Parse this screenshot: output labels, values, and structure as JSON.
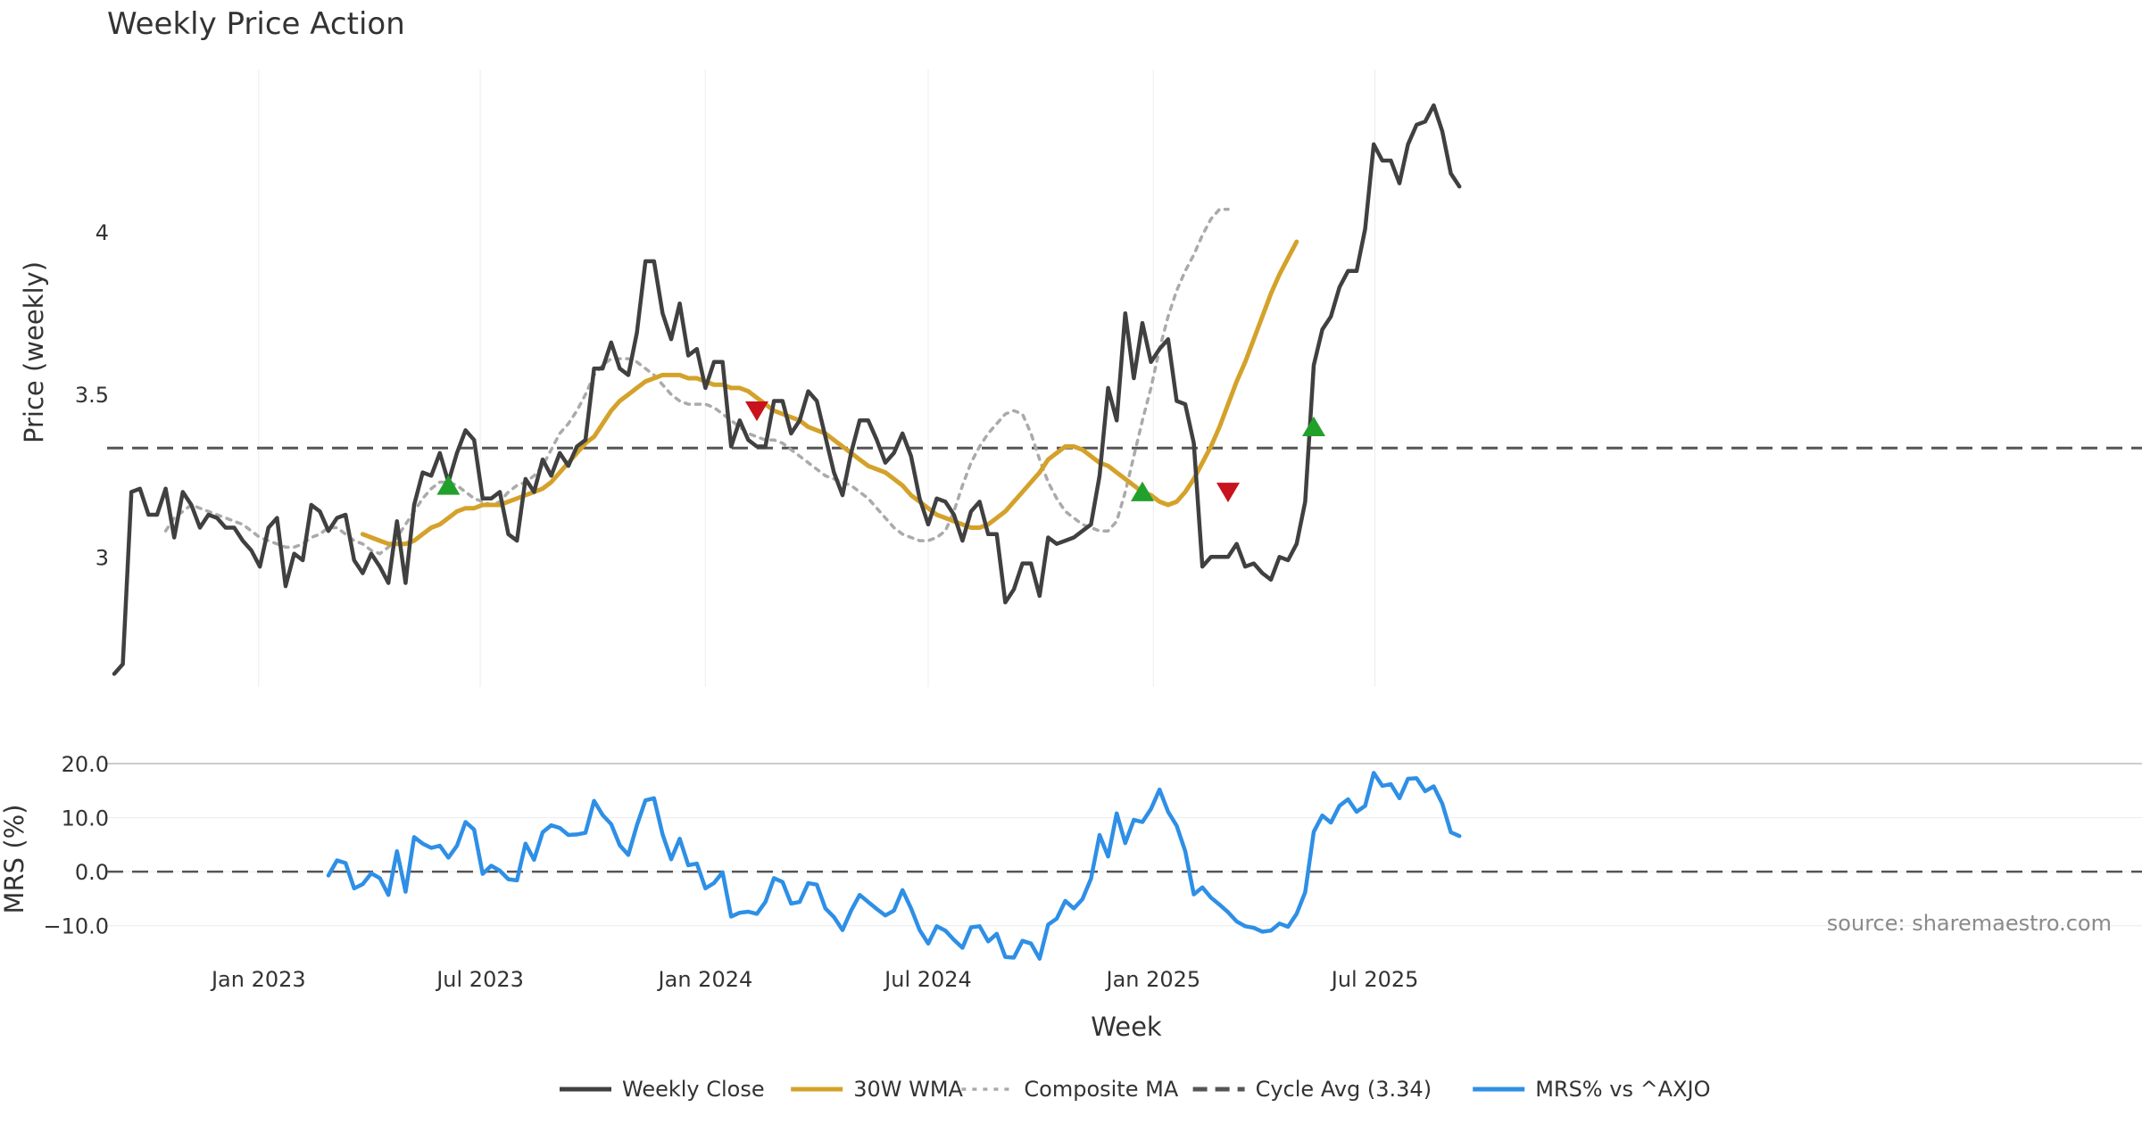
{
  "chart_data": [
    {
      "type": "line",
      "title": "Weekly Price Action",
      "xlabel": "Week",
      "ylabel": "Price (weekly)",
      "x_start": "2022-09-05",
      "x_step_days": 7,
      "ylim": [
        2.6,
        4.5
      ],
      "yticks": [
        3,
        3.5,
        4
      ],
      "ytick_labels": [
        "3",
        "3.5",
        "4"
      ],
      "xticks": [
        "2023-01-01",
        "2023-07-01",
        "2024-01-01",
        "2024-07-01",
        "2025-01-01",
        "2025-07-01"
      ],
      "xtick_labels": [
        "Jan 2023",
        "Jul 2023",
        "Jan 2024",
        "Jul 2024",
        "Jan 2025",
        "Jul 2025"
      ],
      "grid": true,
      "series": [
        {
          "name": "Weekly Close",
          "color": "#404040",
          "values": [
            2.64,
            2.67,
            3.2,
            3.21,
            3.13,
            3.13,
            3.21,
            3.06,
            3.2,
            3.16,
            3.09,
            3.13,
            3.12,
            3.09,
            3.09,
            3.05,
            3.02,
            2.97,
            3.09,
            3.12,
            2.91,
            3.01,
            2.99,
            3.16,
            3.14,
            3.08,
            3.12,
            3.13,
            2.99,
            2.95,
            3.01,
            2.97,
            2.92,
            3.11,
            2.92,
            3.16,
            3.26,
            3.25,
            3.32,
            3.23,
            3.32,
            3.39,
            3.36,
            3.18,
            3.18,
            3.2,
            3.07,
            3.05,
            3.24,
            3.2,
            3.3,
            3.25,
            3.32,
            3.28,
            3.34,
            3.36,
            3.58,
            3.58,
            3.66,
            3.58,
            3.56,
            3.69,
            3.91,
            3.91,
            3.75,
            3.67,
            3.78,
            3.62,
            3.64,
            3.52,
            3.6,
            3.6,
            3.34,
            3.42,
            3.36,
            3.34,
            3.34,
            3.48,
            3.48,
            3.38,
            3.42,
            3.51,
            3.48,
            3.37,
            3.26,
            3.19,
            3.32,
            3.42,
            3.42,
            3.36,
            3.29,
            3.32,
            3.38,
            3.31,
            3.18,
            3.1,
            3.18,
            3.17,
            3.13,
            3.05,
            3.14,
            3.17,
            3.07,
            3.07,
            2.86,
            2.9,
            2.98,
            2.98,
            2.88,
            3.06,
            3.04,
            3.05,
            3.06,
            3.08,
            3.1,
            3.25,
            3.52,
            3.42,
            3.75,
            3.55,
            3.72,
            3.6,
            3.64,
            3.67,
            3.48,
            3.47,
            3.35,
            2.97,
            3,
            3,
            3,
            3.04,
            2.97,
            2.98,
            2.95,
            2.93,
            3,
            2.99,
            3.04,
            3.17,
            3.59,
            3.7,
            3.74,
            3.83,
            3.88,
            3.88,
            4.01,
            4.27,
            4.22,
            4.22,
            4.15,
            4.27,
            4.33,
            4.34,
            4.39,
            4.31,
            4.18,
            4.14
          ]
        },
        {
          "name": "30W WMA",
          "color": "#d4a22a",
          "start_index": 29,
          "values": [
            3.07,
            3.06,
            3.05,
            3.04,
            3.04,
            3.04,
            3.05,
            3.07,
            3.09,
            3.1,
            3.12,
            3.14,
            3.15,
            3.15,
            3.16,
            3.16,
            3.16,
            3.17,
            3.18,
            3.19,
            3.2,
            3.21,
            3.23,
            3.26,
            3.29,
            3.32,
            3.35,
            3.37,
            3.41,
            3.45,
            3.48,
            3.5,
            3.52,
            3.54,
            3.55,
            3.56,
            3.56,
            3.56,
            3.55,
            3.55,
            3.54,
            3.53,
            3.53,
            3.52,
            3.52,
            3.51,
            3.49,
            3.47,
            3.45,
            3.44,
            3.43,
            3.42,
            3.4,
            3.39,
            3.38,
            3.36,
            3.34,
            3.32,
            3.3,
            3.28,
            3.27,
            3.26,
            3.24,
            3.22,
            3.19,
            3.17,
            3.15,
            3.13,
            3.12,
            3.11,
            3.1,
            3.09,
            3.09,
            3.1,
            3.12,
            3.14,
            3.17,
            3.2,
            3.23,
            3.26,
            3.3,
            3.32,
            3.34,
            3.34,
            3.33,
            3.31,
            3.29,
            3.28,
            3.26,
            3.24,
            3.22,
            3.2,
            3.19,
            3.17,
            3.16,
            3.17,
            3.2,
            3.24,
            3.29,
            3.34,
            3.4,
            3.47,
            3.54,
            3.6,
            3.67,
            3.74,
            3.81,
            3.87,
            3.92,
            3.97
          ]
        },
        {
          "name": "Composite MA",
          "color": "#aaaaaa",
          "start_index": 6,
          "values": [
            3.08,
            3.12,
            3.14,
            3.16,
            3.15,
            3.14,
            3.13,
            3.12,
            3.11,
            3.1,
            3.08,
            3.06,
            3.05,
            3.04,
            3.03,
            3.03,
            3.04,
            3.06,
            3.07,
            3.09,
            3.09,
            3.07,
            3.05,
            3.04,
            3.02,
            3.01,
            3.03,
            3.06,
            3.1,
            3.14,
            3.18,
            3.21,
            3.23,
            3.23,
            3.22,
            3.2,
            3.18,
            3.17,
            3.16,
            3.17,
            3.2,
            3.22,
            3.23,
            3.25,
            3.28,
            3.33,
            3.38,
            3.41,
            3.45,
            3.5,
            3.56,
            3.59,
            3.61,
            3.61,
            3.61,
            3.6,
            3.58,
            3.56,
            3.53,
            3.5,
            3.48,
            3.47,
            3.47,
            3.47,
            3.46,
            3.44,
            3.42,
            3.4,
            3.38,
            3.37,
            3.36,
            3.36,
            3.35,
            3.33,
            3.31,
            3.29,
            3.27,
            3.25,
            3.24,
            3.23,
            3.22,
            3.2,
            3.18,
            3.15,
            3.12,
            3.09,
            3.07,
            3.06,
            3.05,
            3.05,
            3.06,
            3.08,
            3.14,
            3.22,
            3.29,
            3.34,
            3.38,
            3.41,
            3.44,
            3.45,
            3.44,
            3.38,
            3.3,
            3.23,
            3.18,
            3.14,
            3.12,
            3.1,
            3.09,
            3.08,
            3.08,
            3.11,
            3.2,
            3.31,
            3.42,
            3.52,
            3.64,
            3.74,
            3.82,
            3.88,
            3.93,
            3.99,
            4.04,
            4.07,
            4.07
          ]
        }
      ],
      "reference_lines": [
        {
          "name": "Cycle Avg (3.34)",
          "value": 3.335,
          "style": "dashed",
          "color": "#555555"
        }
      ],
      "markers": [
        {
          "type": "buy",
          "shape": "triangle-up",
          "color": "#22a02c",
          "index": 39,
          "value": 3.22
        },
        {
          "type": "sell",
          "shape": "triangle-down",
          "color": "#c8121d",
          "index": 75,
          "value": 3.45
        },
        {
          "type": "buy",
          "shape": "triangle-up",
          "color": "#22a02c",
          "index": 120,
          "value": 3.2
        },
        {
          "type": "sell",
          "shape": "triangle-down",
          "color": "#c8121d",
          "index": 130,
          "value": 3.2
        },
        {
          "type": "buy",
          "shape": "triangle-up",
          "color": "#22a02c",
          "index": 140,
          "value": 3.4
        }
      ]
    },
    {
      "type": "line",
      "title": "",
      "xlabel": "Week",
      "ylabel": "MRS (%)",
      "ylim": [
        -15,
        21
      ],
      "yticks": [
        -10,
        0,
        10,
        20
      ],
      "ytick_labels": [
        "−10.0",
        "0.0",
        "10.0",
        "20.0"
      ],
      "grid": true,
      "series": [
        {
          "name": "MRS% vs ^AXJO",
          "color": "#2e8fe6",
          "start_index": 25,
          "values": [
            -0.7,
            2.1,
            1.6,
            -3.1,
            -2.3,
            -0.3,
            -1.2,
            -4.3,
            3.8,
            -3.7,
            6.4,
            5.2,
            4.4,
            4.8,
            2.6,
            4.8,
            9.2,
            7.8,
            -0.4,
            1.1,
            0.2,
            -1.4,
            -1.6,
            5.2,
            2.2,
            7.3,
            8.6,
            8.1,
            6.8,
            6.9,
            7.2,
            13.1,
            10.5,
            8.8,
            4.9,
            3.1,
            8.6,
            13.2,
            13.6,
            6.9,
            2.3,
            6.1,
            1.2,
            1.5,
            -3.1,
            -2.1,
            -0.1,
            -8.3,
            -7.6,
            -7.4,
            -7.8,
            -5.6,
            -1.2,
            -1.9,
            -5.9,
            -5.6,
            -2.1,
            -2.4,
            -6.8,
            -8.4,
            -10.8,
            -7.2,
            -4.3,
            -5.6,
            -6.9,
            -8.1,
            -7.2,
            -3.4,
            -6.8,
            -10.8,
            -13.3,
            -10.1,
            -10.9,
            -12.6,
            -14.1,
            -10.3,
            -10.1,
            -12.9,
            -11.5,
            -15.8,
            -15.9,
            -12.8,
            -13.3,
            -16.1,
            -9.8,
            -8.7,
            -5.4,
            -6.8,
            -5.1,
            -1.3,
            6.8,
            2.8,
            10.8,
            5.3,
            9.6,
            9.2,
            11.6,
            15.2,
            11.1,
            8.5,
            3.8,
            -4.2,
            -2.9,
            -4.8,
            -6.1,
            -7.5,
            -9.2,
            -10.1,
            -10.4,
            -11.1,
            -10.9,
            -9.6,
            -10.2,
            -7.8,
            -3.8,
            7.4,
            10.4,
            9.1,
            12.2,
            13.4,
            11.1,
            12.2,
            18.3,
            15.9,
            16.2,
            13.6,
            17.2,
            17.3,
            14.9,
            15.8,
            12.6,
            7.3,
            6.6
          ]
        }
      ],
      "reference_lines": [
        {
          "name": "zero",
          "value": 0,
          "style": "dashed",
          "color": "#555555"
        }
      ],
      "annotations": [
        "source: sharemaestro.com"
      ]
    }
  ],
  "legend": {
    "placement": "bottom-center",
    "entries": [
      {
        "label": "Weekly Close",
        "style": "solid",
        "color": "#404040"
      },
      {
        "label": "30W WMA",
        "style": "solid",
        "color": "#d4a22a"
      },
      {
        "label": "Composite MA",
        "style": "dotted",
        "color": "#aaaaaa"
      },
      {
        "label": "Cycle Avg (3.34)",
        "style": "dashed",
        "color": "#555555"
      },
      {
        "label": "MRS% vs ^AXJO",
        "style": "solid",
        "color": "#2e8fe6"
      }
    ]
  }
}
